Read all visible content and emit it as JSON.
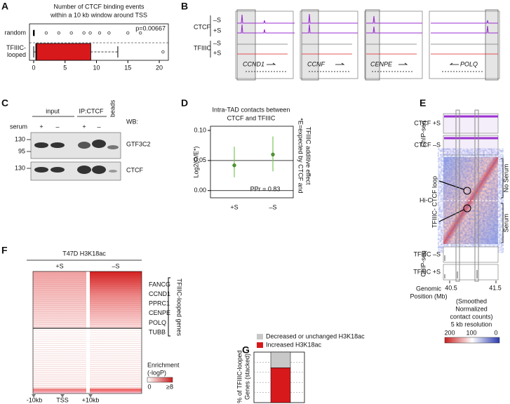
{
  "panel_labels": [
    "A",
    "B",
    "C",
    "D",
    "E",
    "F",
    "G"
  ],
  "chart_data": [
    {
      "type": "boxplot",
      "title": [
        "Number of CTCF binding events",
        "within a 10 kb window around TSS"
      ],
      "categories": [
        "random",
        "TFIIIC-looped"
      ],
      "annotation": "p=0.00667",
      "xlim": [
        -0.67,
        21.45
      ],
      "xticks": [
        0,
        5,
        10,
        15,
        20
      ],
      "boxes": [
        {
          "color": "#ffffff",
          "whisker_low": 0,
          "q1": 0,
          "median": 0,
          "q3": 0,
          "whisker_high": 0,
          "outliers": [
            2,
            4,
            6,
            8,
            9,
            10.5,
            12,
            15,
            17
          ]
        },
        {
          "color": "#d7191c",
          "whisker_low": 0,
          "q1": 0.4,
          "median": 0.4,
          "q3": 9.1,
          "whisker_high": 13.4,
          "outliers": [
            20.6
          ]
        }
      ]
    },
    {
      "type": "errorbar",
      "title": [
        "Intra-TAD contacts between",
        "CTCF and TFIIIC"
      ],
      "ylabel": "Log2(O/E*)",
      "note": [
        "*E=expected by CTCF and",
        "TFIIIC additive effect"
      ],
      "categories": [
        "+S",
        "–S"
      ],
      "values": [
        0.042,
        0.06
      ],
      "error_low": [
        0.022,
        0.032
      ],
      "error_high": [
        0.073,
        0.09
      ],
      "color": "#4f9a2e",
      "hlines": [
        0,
        0.05
      ],
      "ylim": [
        -0.012,
        0.107
      ],
      "yticks": [
        {
          "value": 0,
          "label": "0.00"
        },
        {
          "value": 0.05,
          "label": "0.05"
        },
        {
          "value": 0.1,
          "label": "0.10"
        }
      ],
      "annotation": "PPr = 0.83"
    },
    {
      "type": "stacked_bar",
      "ylabel": [
        "% of TFIIIC-looped",
        "Genes (stacked)"
      ],
      "categories": [
        null
      ],
      "series": [
        {
          "name": "Decreased or unchanged H3K18ac",
          "color": "#c8c8c8",
          "values": [
            0.31
          ]
        },
        {
          "name": "Increased H3K18ac",
          "color": "#d7191c",
          "values": [
            0.69
          ]
        }
      ],
      "ylim": [
        0,
        1
      ],
      "gridlines": [
        0.2,
        0.4,
        0.6,
        0.8
      ]
    }
  ],
  "panel_B": {
    "tracks": [
      "CTCF",
      "–S",
      "+S",
      "TFIIIC",
      "–S",
      "+S"
    ],
    "genes": [
      "CCND1",
      "CCNF",
      "CENPE",
      "POLQ"
    ]
  },
  "panel_C": {
    "headers": [
      "input",
      "IP:CTCF",
      "beads"
    ],
    "serum_label": "serum",
    "signs": [
      "+",
      "–",
      "+",
      "–"
    ],
    "wb": "WB:",
    "markers": [
      "130",
      "95",
      "130"
    ],
    "blots": [
      "GTF3C2",
      "CTCF"
    ]
  },
  "panel_E": {
    "chipseq": "ChIP-seq",
    "ctcf": [
      "CTCF +S",
      "CTCF –S"
    ],
    "hic": "Hi-C",
    "loop": "TFIIIC- CTCF loop",
    "conditions": [
      "No Serum",
      "Serum"
    ],
    "tfiiic": [
      "TFIIIC –S",
      "TFIIIC +S"
    ],
    "position_label": [
      "Genomic",
      "Position (Mb)"
    ],
    "positions": [
      "40.5",
      "41.5"
    ],
    "colorbar_caption": [
      "(Smoothed",
      "Normalized",
      "contact counts)",
      "5 kb resolution"
    ],
    "colorbar_labels": [
      "200",
      "100",
      "0"
    ]
  },
  "panel_F": {
    "title": "T47D H3K18ac",
    "columns": [
      "+S",
      "–S"
    ],
    "genes": [
      "FANCG",
      "CCND1",
      "PPRC1",
      "CENPE",
      "POLQ",
      "TUBB"
    ],
    "group": "TFIIIC-looped genes",
    "legend": [
      "Enrichment",
      "(-logP)"
    ],
    "legend_labels": [
      "0",
      "≥8"
    ],
    "axis": [
      "-10kb",
      "TSS",
      "+10kb"
    ]
  }
}
